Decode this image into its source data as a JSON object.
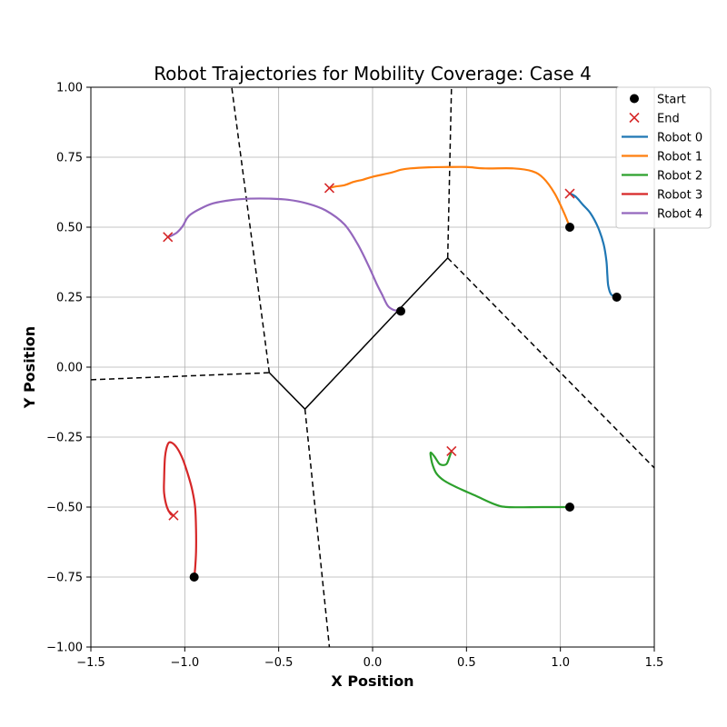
{
  "chart_data": {
    "type": "line",
    "title": "Robot Trajectories for Mobility Coverage: Case 4",
    "xlabel": "X Position",
    "ylabel": "Y Position",
    "xlim": [
      -1.5,
      1.5
    ],
    "ylim": [
      -1.0,
      1.0
    ],
    "xticks": [
      -1.5,
      -1.0,
      -0.5,
      0.0,
      0.5,
      1.0,
      1.5
    ],
    "xtick_labels": [
      "−1.5",
      "−1.0",
      "−0.5",
      "0.0",
      "0.5",
      "1.0",
      "1.5"
    ],
    "yticks": [
      -1.0,
      -0.75,
      -0.5,
      -0.25,
      0.0,
      0.25,
      0.5,
      0.75,
      1.0
    ],
    "ytick_labels": [
      "−1.00",
      "−0.75",
      "−0.50",
      "−0.25",
      "0.00",
      "0.25",
      "0.50",
      "0.75",
      "1.00"
    ],
    "grid": true,
    "legend_position": "top-right",
    "legend": {
      "start_label": "Start",
      "end_label": "End"
    },
    "colors": {
      "start_marker": "#000000",
      "end_marker": "#d62728",
      "voronoi_dashed": "#000000",
      "voronoi_solid": "#000000"
    },
    "series": [
      {
        "name": "Robot 0",
        "color": "#1f77b4",
        "start": [
          1.3,
          0.25
        ],
        "end": [
          1.05,
          0.62
        ],
        "points": [
          [
            1.3,
            0.25
          ],
          [
            1.27,
            0.26
          ],
          [
            1.255,
            0.29
          ],
          [
            1.25,
            0.33
          ],
          [
            1.245,
            0.38
          ],
          [
            1.23,
            0.44
          ],
          [
            1.2,
            0.5
          ],
          [
            1.16,
            0.55
          ],
          [
            1.12,
            0.58
          ],
          [
            1.08,
            0.61
          ],
          [
            1.05,
            0.62
          ]
        ]
      },
      {
        "name": "Robot 1",
        "color": "#ff7f0e",
        "start": [
          1.05,
          0.5
        ],
        "end": [
          -0.23,
          0.64
        ],
        "points": [
          [
            1.05,
            0.5
          ],
          [
            1.02,
            0.55
          ],
          [
            0.97,
            0.62
          ],
          [
            0.91,
            0.675
          ],
          [
            0.85,
            0.7
          ],
          [
            0.75,
            0.71
          ],
          [
            0.6,
            0.71
          ],
          [
            0.5,
            0.715
          ],
          [
            0.4,
            0.715
          ],
          [
            0.3,
            0.714
          ],
          [
            0.2,
            0.71
          ],
          [
            0.15,
            0.705
          ],
          [
            0.1,
            0.695
          ],
          [
            0.0,
            0.68
          ],
          [
            -0.05,
            0.67
          ],
          [
            -0.1,
            0.662
          ],
          [
            -0.15,
            0.65
          ],
          [
            -0.2,
            0.645
          ],
          [
            -0.23,
            0.64
          ]
        ]
      },
      {
        "name": "Robot 2",
        "color": "#2ca02c",
        "start": [
          1.05,
          -0.5
        ],
        "end": [
          0.42,
          -0.3
        ],
        "points": [
          [
            1.05,
            -0.5
          ],
          [
            0.9,
            -0.5
          ],
          [
            0.72,
            -0.5
          ],
          [
            0.65,
            -0.49
          ],
          [
            0.55,
            -0.46
          ],
          [
            0.45,
            -0.43
          ],
          [
            0.38,
            -0.405
          ],
          [
            0.34,
            -0.38
          ],
          [
            0.32,
            -0.35
          ],
          [
            0.31,
            -0.32
          ],
          [
            0.31,
            -0.305
          ],
          [
            0.33,
            -0.32
          ],
          [
            0.355,
            -0.345
          ],
          [
            0.375,
            -0.35
          ],
          [
            0.395,
            -0.345
          ],
          [
            0.41,
            -0.32
          ],
          [
            0.42,
            -0.3
          ]
        ]
      },
      {
        "name": "Robot 3",
        "color": "#d62728",
        "start": [
          -0.95,
          -0.75
        ],
        "end": [
          -1.06,
          -0.53
        ],
        "points": [
          [
            -0.95,
            -0.75
          ],
          [
            -0.945,
            -0.72
          ],
          [
            -0.94,
            -0.66
          ],
          [
            -0.94,
            -0.58
          ],
          [
            -0.945,
            -0.5
          ],
          [
            -0.96,
            -0.44
          ],
          [
            -0.98,
            -0.39
          ],
          [
            -1.01,
            -0.33
          ],
          [
            -1.04,
            -0.29
          ],
          [
            -1.07,
            -0.27
          ],
          [
            -1.09,
            -0.275
          ],
          [
            -1.105,
            -0.32
          ],
          [
            -1.11,
            -0.4
          ],
          [
            -1.11,
            -0.45
          ],
          [
            -1.095,
            -0.5
          ],
          [
            -1.075,
            -0.525
          ],
          [
            -1.06,
            -0.53
          ]
        ]
      },
      {
        "name": "Robot 4",
        "color": "#9467bd",
        "start": [
          0.15,
          0.2
        ],
        "end": [
          -1.09,
          0.465
        ],
        "points": [
          [
            0.15,
            0.2
          ],
          [
            0.11,
            0.205
          ],
          [
            0.08,
            0.22
          ],
          [
            0.05,
            0.26
          ],
          [
            0.02,
            0.3
          ],
          [
            -0.02,
            0.36
          ],
          [
            -0.08,
            0.44
          ],
          [
            -0.15,
            0.51
          ],
          [
            -0.25,
            0.56
          ],
          [
            -0.35,
            0.585
          ],
          [
            -0.45,
            0.598
          ],
          [
            -0.55,
            0.602
          ],
          [
            -0.65,
            0.602
          ],
          [
            -0.75,
            0.597
          ],
          [
            -0.85,
            0.585
          ],
          [
            -0.92,
            0.565
          ],
          [
            -0.97,
            0.545
          ],
          [
            -0.99,
            0.53
          ],
          [
            -1.01,
            0.505
          ],
          [
            -1.04,
            0.482
          ],
          [
            -1.07,
            0.47
          ],
          [
            -1.09,
            0.465
          ]
        ]
      }
    ],
    "voronoi": {
      "solid_segments": [
        [
          [
            -0.36,
            -0.15
          ],
          [
            0.4,
            0.39
          ]
        ],
        [
          [
            -0.55,
            -0.02
          ],
          [
            -0.36,
            -0.15
          ]
        ]
      ],
      "dashed_segments": [
        [
          [
            -1.5,
            -0.045
          ],
          [
            -0.55,
            -0.02
          ]
        ],
        [
          [
            -0.55,
            -0.02
          ],
          [
            -0.75,
            1.0
          ]
        ],
        [
          [
            0.4,
            0.39
          ],
          [
            0.42,
            1.0
          ]
        ],
        [
          [
            0.4,
            0.39
          ],
          [
            1.5,
            -0.36
          ]
        ],
        [
          [
            -0.36,
            -0.15
          ],
          [
            -0.23,
            -1.0
          ]
        ]
      ]
    }
  }
}
